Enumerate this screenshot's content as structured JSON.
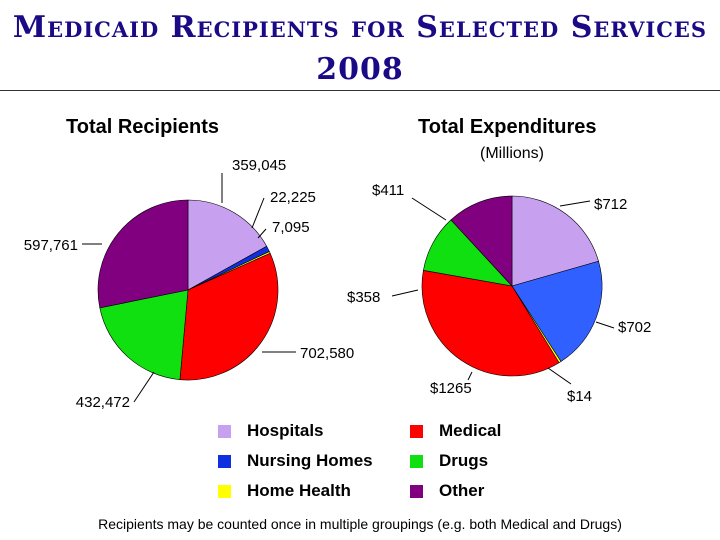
{
  "page": {
    "title_line1": "Medicaid Recipients for Selected Services",
    "title_line2": "2008",
    "footnote": "Recipients may be counted once in multiple groupings (e.g. both Medical and Drugs)"
  },
  "legend": [
    {
      "label": "Hospitals",
      "color": "#c8a0f0"
    },
    {
      "label": "Medical",
      "color": "#ff0000"
    },
    {
      "label": "Nursing Homes",
      "color": "#1030e0"
    },
    {
      "label": "Drugs",
      "color": "#10e010"
    },
    {
      "label": "Home Health",
      "color": "#ffff00"
    },
    {
      "label": "Other",
      "color": "#800080"
    }
  ],
  "chart_data": [
    {
      "type": "pie",
      "title": "Total Recipients",
      "subtitle": "",
      "slices": [
        {
          "category": "Hospitals",
          "value": 359045,
          "label": "359,045",
          "color": "#c8a0f0"
        },
        {
          "category": "Nursing Homes",
          "value": 22225,
          "label": "22,225",
          "color": "#1030e0"
        },
        {
          "category": "Home Health",
          "value": 7095,
          "label": "7,095",
          "color": "#ffff00"
        },
        {
          "category": "Medical",
          "value": 702580,
          "label": "702,580",
          "color": "#ff0000"
        },
        {
          "category": "Drugs",
          "value": 432472,
          "label": "432,472",
          "color": "#10e010"
        },
        {
          "category": "Other",
          "value": 597761,
          "label": "597,761",
          "color": "#800080"
        }
      ]
    },
    {
      "type": "pie",
      "title": "Total Expenditures",
      "subtitle": "(Millions)",
      "slices": [
        {
          "category": "Hospitals",
          "value": 712,
          "label": "$712",
          "color": "#c8a0f0"
        },
        {
          "category": "Nursing Homes",
          "value": 702,
          "label": "$702",
          "color": "#3060ff"
        },
        {
          "category": "Home Health",
          "value": 14,
          "label": "$14",
          "color": "#ffff00"
        },
        {
          "category": "Medical",
          "value": 1265,
          "label": "$1265",
          "color": "#ff0000"
        },
        {
          "category": "Drugs",
          "value": 358,
          "label": "$358",
          "color": "#10e010"
        },
        {
          "category": "Other",
          "value": 411,
          "label": "$411",
          "color": "#800080"
        }
      ]
    }
  ]
}
